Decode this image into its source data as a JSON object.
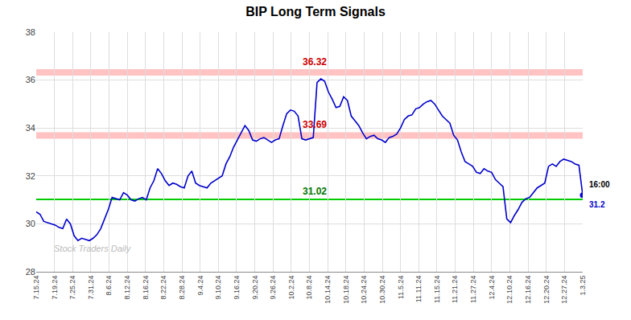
{
  "chart_data": {
    "type": "line",
    "title": "BIP Long Term Signals",
    "color": "#0000cc",
    "values": [
      30.5,
      30.4,
      30.1,
      30.05,
      30.0,
      29.95,
      29.85,
      29.8,
      30.2,
      30.0,
      29.5,
      29.3,
      29.4,
      29.35,
      29.3,
      29.4,
      29.55,
      29.8,
      30.2,
      30.6,
      31.1,
      31.05,
      31.0,
      31.3,
      31.2,
      31.0,
      30.95,
      31.05,
      31.1,
      31.0,
      31.5,
      31.8,
      32.3,
      32.1,
      31.8,
      31.6,
      31.7,
      31.65,
      31.55,
      31.5,
      32.0,
      32.2,
      31.7,
      31.6,
      31.55,
      31.5,
      31.7,
      31.8,
      31.9,
      32.0,
      32.5,
      32.8,
      33.2,
      33.5,
      33.8,
      34.1,
      33.9,
      33.5,
      33.45,
      33.55,
      33.6,
      33.5,
      33.4,
      33.5,
      33.55,
      34.1,
      34.6,
      34.75,
      34.7,
      34.5,
      33.55,
      33.5,
      33.55,
      33.6,
      35.9,
      36.05,
      35.95,
      35.5,
      35.2,
      34.85,
      34.9,
      35.3,
      35.15,
      34.5,
      34.3,
      34.1,
      33.8,
      33.55,
      33.65,
      33.7,
      33.55,
      33.5,
      33.4,
      33.6,
      33.65,
      33.75,
      34.0,
      34.35,
      34.5,
      34.55,
      34.8,
      34.85,
      35.0,
      35.1,
      35.15,
      35.0,
      34.75,
      34.5,
      34.35,
      34.2,
      33.7,
      33.5,
      33.0,
      32.6,
      32.5,
      32.4,
      32.15,
      32.1,
      32.3,
      32.2,
      32.15,
      31.85,
      31.7,
      31.55,
      30.2,
      30.05,
      30.35,
      30.6,
      30.9,
      31.05,
      31.1,
      31.3,
      31.5,
      31.6,
      31.7,
      32.4,
      32.5,
      32.4,
      32.6,
      32.7,
      32.65,
      32.6,
      32.5,
      32.45,
      31.2
    ],
    "last_point": {
      "color": "#0000cc",
      "label": "16:00",
      "value_label": "31.2"
    },
    "lines": [
      {
        "value": 31.02,
        "color": "#00cc00",
        "label": "31.02",
        "label_color": "#007700"
      },
      {
        "value": 36.32,
        "color": "#ffaaaa",
        "label": "36.32",
        "label_color": "#cc0000"
      },
      {
        "value": 33.69,
        "color": "#ffaaaa",
        "label": "33.69",
        "label_color": "#cc0000"
      }
    ],
    "watermark": "Stock Traders Daily",
    "xlim": [
      0,
      144
    ],
    "xticks": [
      {
        "value": 0,
        "label": "7.15.24"
      },
      {
        "value": 4.8,
        "label": "7.19.24"
      },
      {
        "value": 9.6,
        "label": "7.25.24"
      },
      {
        "value": 14.4,
        "label": "7.31.24"
      },
      {
        "value": 19.2,
        "label": "8.6.24"
      },
      {
        "value": 24,
        "label": "8.12.24"
      },
      {
        "value": 28.8,
        "label": "8.16.24"
      },
      {
        "value": 33.6,
        "label": "8.22.24"
      },
      {
        "value": 38.4,
        "label": "8.28.24"
      },
      {
        "value": 43.2,
        "label": "9.4.24"
      },
      {
        "value": 48,
        "label": "9.10.24"
      },
      {
        "value": 52.8,
        "label": "9.16.24"
      },
      {
        "value": 57.6,
        "label": "9.20.24"
      },
      {
        "value": 62.4,
        "label": "9.26.24"
      },
      {
        "value": 67.2,
        "label": "10.2.24"
      },
      {
        "value": 72,
        "label": "10.8.24"
      },
      {
        "value": 76.8,
        "label": "10.14.24"
      },
      {
        "value": 81.6,
        "label": "10.18.24"
      },
      {
        "value": 86.4,
        "label": "10.24.24"
      },
      {
        "value": 91.2,
        "label": "10.30.24"
      },
      {
        "value": 96,
        "label": "11.5.24"
      },
      {
        "value": 100.8,
        "label": "11.11.24"
      },
      {
        "value": 105.6,
        "label": "11.15.24"
      },
      {
        "value": 110.4,
        "label": "11.21.24"
      },
      {
        "value": 115.2,
        "label": "11.27.24"
      },
      {
        "value": 120,
        "label": "12.4.24"
      },
      {
        "value": 124.8,
        "label": "12.10.24"
      },
      {
        "value": 129.6,
        "label": "12.16.24"
      },
      {
        "value": 134.4,
        "label": "12.20.24"
      },
      {
        "value": 139.2,
        "label": "12.27.24"
      },
      {
        "value": 144,
        "label": "1.3.25"
      }
    ],
    "ylim": [
      28,
      38
    ],
    "yticks": [
      28,
      30,
      32,
      34,
      36,
      38
    ],
    "grid": true
  }
}
